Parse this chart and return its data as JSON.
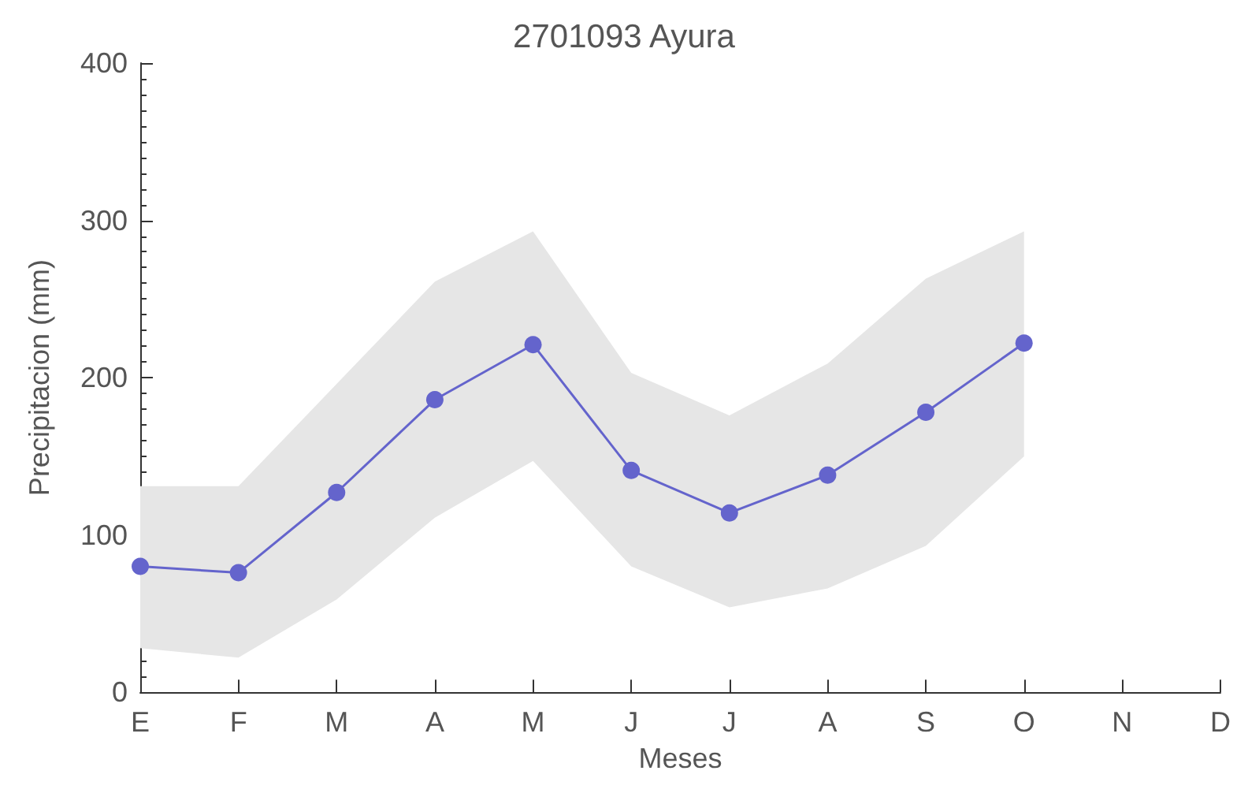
{
  "chart_data": {
    "type": "line",
    "title": "2701093 Ayura",
    "xlabel": "Meses",
    "ylabel": "Precipitacion (mm)",
    "categories": [
      "E",
      "F",
      "M",
      "A",
      "M",
      "J",
      "J",
      "A",
      "S",
      "O",
      "N",
      "D"
    ],
    "series": [
      {
        "color": "#6464cc",
        "values": [
          80,
          76,
          127,
          186,
          221,
          141,
          114,
          138,
          178,
          222,
          null,
          null
        ],
        "lower": [
          28,
          22,
          59,
          111,
          147,
          80,
          54,
          66,
          93,
          150,
          null,
          null
        ],
        "upper": [
          131,
          131,
          196,
          261,
          293,
          203,
          176,
          209,
          263,
          293,
          null,
          null
        ]
      }
    ],
    "ylim": [
      0,
      400
    ],
    "yticks": [
      0,
      100,
      200,
      300,
      400
    ],
    "grid": false,
    "marker": "circle",
    "line_style": "solid"
  }
}
